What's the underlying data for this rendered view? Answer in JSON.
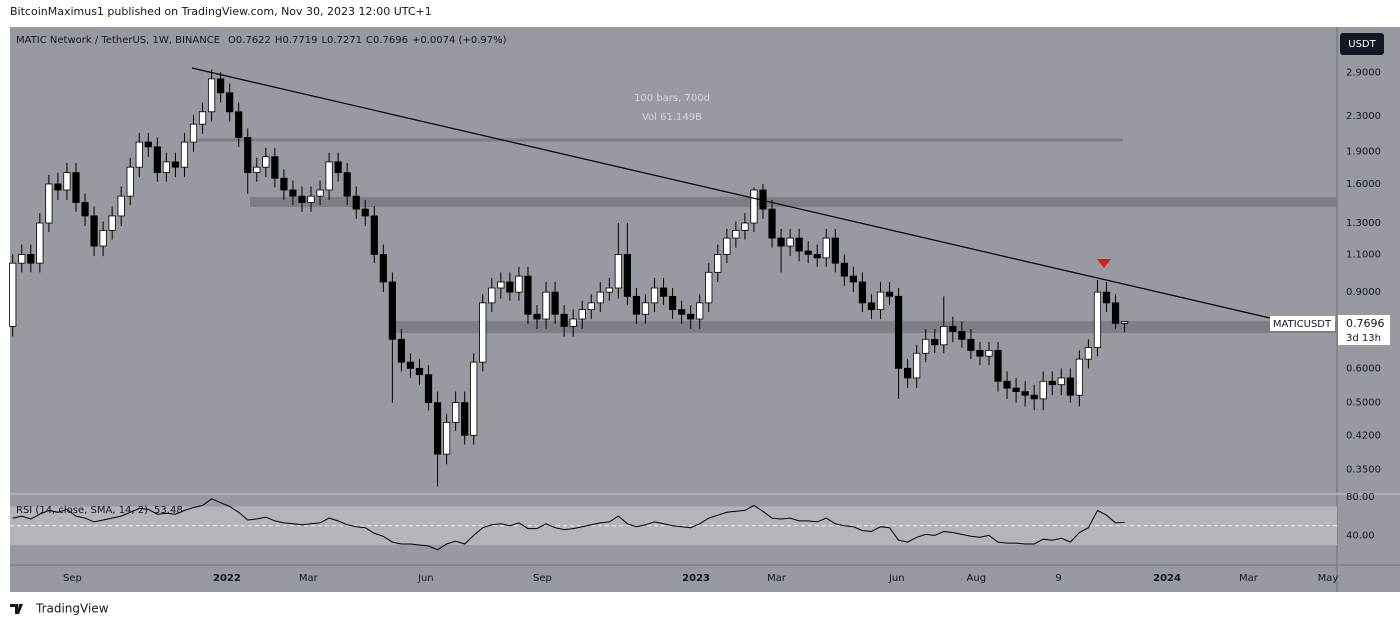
{
  "publisher": "BitcoinMaximus1 published on TradingView.com, Nov 30, 2023 12:00 UTC+1",
  "footer": "TradingView",
  "chart_data": {
    "type": "candlestick",
    "title": "MATIC Network / TetherUS, 1W, BINANCE",
    "ohlc_labels": [
      "O",
      "H",
      "L",
      "C"
    ],
    "change": "+0.0074 (+0.97%)",
    "currency_button": "USDT",
    "symbol": "MATICUSDT",
    "countdown": "3d 13h",
    "measure_texts": [
      "100 bars, 700d",
      "Vol 61.149B"
    ],
    "log_scale": true,
    "up_color": "#ffffff",
    "down_color": "#000000",
    "open": [
      0.75,
      1.05,
      1.1,
      1.05,
      1.3,
      1.6,
      1.55,
      1.7,
      1.45,
      1.35,
      1.15,
      1.25,
      1.35,
      1.5,
      1.75,
      2.0,
      1.95,
      1.7,
      1.8,
      1.75,
      2.0,
      2.2,
      2.35,
      2.8,
      2.6,
      2.35,
      2.05,
      1.7,
      1.75,
      1.85,
      1.65,
      1.55,
      1.5,
      1.45,
      1.5,
      1.55,
      1.8,
      1.7,
      1.5,
      1.4,
      1.35,
      1.1,
      0.95,
      0.7,
      0.62,
      0.6,
      0.58,
      0.5,
      0.38,
      0.45,
      0.5,
      0.42,
      0.62,
      0.85,
      0.92,
      0.95,
      0.9,
      0.98,
      0.8,
      0.78,
      0.9,
      0.8,
      0.75,
      0.78,
      0.82,
      0.85,
      0.9,
      0.92,
      1.1,
      0.88,
      0.8,
      0.85,
      0.92,
      0.88,
      0.82,
      0.8,
      0.78,
      0.85,
      1.0,
      1.1,
      1.2,
      1.25,
      1.3,
      1.55,
      1.4,
      1.2,
      1.15,
      1.2,
      1.12,
      1.1,
      1.08,
      1.2,
      1.05,
      0.98,
      0.95,
      0.85,
      0.82,
      0.9,
      0.88,
      0.6,
      0.57,
      0.65,
      0.7,
      0.68,
      0.75,
      0.73,
      0.7,
      0.66,
      0.64,
      0.66,
      0.56,
      0.54,
      0.53,
      0.52,
      0.51,
      0.56,
      0.55,
      0.57,
      0.52,
      0.63,
      0.67,
      0.9,
      0.85,
      0.7622
    ],
    "high": [
      1.1,
      1.16,
      1.16,
      1.37,
      1.68,
      1.7,
      1.79,
      1.79,
      1.52,
      1.42,
      1.31,
      1.42,
      1.58,
      1.84,
      2.1,
      2.1,
      2.05,
      1.89,
      1.89,
      2.1,
      2.31,
      2.47,
      2.94,
      2.9,
      2.73,
      2.47,
      2.15,
      1.84,
      1.94,
      1.94,
      1.73,
      1.63,
      1.58,
      1.58,
      1.63,
      1.89,
      1.89,
      1.79,
      1.58,
      1.47,
      1.42,
      1.16,
      1.0,
      0.74,
      0.65,
      0.63,
      0.61,
      0.53,
      0.47,
      0.53,
      0.53,
      0.65,
      0.89,
      0.97,
      1.0,
      1.0,
      1.03,
      1.03,
      0.84,
      0.95,
      0.95,
      0.84,
      0.82,
      0.86,
      0.89,
      0.95,
      0.97,
      1.3,
      1.3,
      0.92,
      0.89,
      0.97,
      0.97,
      0.92,
      0.86,
      0.84,
      0.89,
      1.05,
      1.16,
      1.26,
      1.31,
      1.37,
      1.57,
      1.6,
      1.47,
      1.26,
      1.26,
      1.26,
      1.18,
      1.16,
      1.26,
      1.26,
      1.1,
      1.03,
      1.0,
      0.89,
      0.95,
      0.95,
      0.92,
      0.63,
      0.68,
      0.74,
      0.74,
      0.88,
      0.79,
      0.77,
      0.74,
      0.69,
      0.69,
      0.69,
      0.59,
      0.57,
      0.56,
      0.55,
      0.59,
      0.59,
      0.6,
      0.6,
      0.66,
      0.7,
      0.96,
      0.95,
      0.89,
      0.7719
    ],
    "low": [
      0.71,
      1.0,
      1.0,
      1.0,
      1.24,
      1.47,
      1.47,
      1.38,
      1.28,
      1.09,
      1.09,
      1.19,
      1.28,
      1.43,
      1.66,
      1.85,
      1.62,
      1.62,
      1.66,
      1.66,
      1.9,
      2.09,
      2.23,
      2.47,
      2.23,
      1.95,
      1.52,
      1.62,
      1.66,
      1.57,
      1.47,
      1.43,
      1.38,
      1.38,
      1.43,
      1.47,
      1.62,
      1.43,
      1.33,
      1.28,
      1.05,
      0.9,
      0.5,
      0.59,
      0.57,
      0.55,
      0.48,
      0.32,
      0.36,
      0.43,
      0.4,
      0.4,
      0.59,
      0.81,
      0.87,
      0.86,
      0.86,
      0.76,
      0.74,
      0.74,
      0.76,
      0.71,
      0.71,
      0.74,
      0.78,
      0.81,
      0.86,
      0.87,
      0.84,
      0.76,
      0.76,
      0.81,
      0.84,
      0.78,
      0.76,
      0.74,
      0.74,
      0.81,
      0.95,
      1.05,
      1.14,
      1.19,
      1.24,
      1.33,
      1.14,
      1.0,
      1.09,
      1.06,
      1.05,
      1.03,
      1.03,
      1.0,
      0.93,
      0.9,
      0.81,
      0.78,
      0.78,
      0.84,
      0.51,
      0.54,
      0.54,
      0.62,
      0.65,
      0.65,
      0.69,
      0.67,
      0.63,
      0.61,
      0.61,
      0.53,
      0.51,
      0.5,
      0.49,
      0.48,
      0.48,
      0.52,
      0.52,
      0.5,
      0.49,
      0.6,
      0.64,
      0.81,
      0.74,
      0.7271
    ],
    "close": [
      1.05,
      1.1,
      1.05,
      1.3,
      1.6,
      1.55,
      1.7,
      1.45,
      1.35,
      1.15,
      1.25,
      1.35,
      1.5,
      1.75,
      2.0,
      1.95,
      1.7,
      1.8,
      1.75,
      2.0,
      2.2,
      2.35,
      2.8,
      2.6,
      2.35,
      2.05,
      1.7,
      1.75,
      1.85,
      1.65,
      1.55,
      1.5,
      1.45,
      1.5,
      1.55,
      1.8,
      1.7,
      1.5,
      1.4,
      1.35,
      1.1,
      0.95,
      0.7,
      0.62,
      0.6,
      0.58,
      0.5,
      0.38,
      0.45,
      0.5,
      0.42,
      0.62,
      0.85,
      0.92,
      0.95,
      0.9,
      0.98,
      0.8,
      0.78,
      0.9,
      0.8,
      0.75,
      0.78,
      0.82,
      0.85,
      0.9,
      0.92,
      1.1,
      0.88,
      0.8,
      0.85,
      0.92,
      0.88,
      0.82,
      0.8,
      0.78,
      0.85,
      1.0,
      1.1,
      1.2,
      1.25,
      1.3,
      1.55,
      1.4,
      1.2,
      1.15,
      1.2,
      1.12,
      1.1,
      1.08,
      1.2,
      1.05,
      0.98,
      0.95,
      0.85,
      0.82,
      0.9,
      0.88,
      0.6,
      0.57,
      0.65,
      0.7,
      0.68,
      0.75,
      0.73,
      0.7,
      0.66,
      0.64,
      0.66,
      0.56,
      0.54,
      0.53,
      0.52,
      0.51,
      0.56,
      0.55,
      0.57,
      0.52,
      0.63,
      0.67,
      0.9,
      0.85,
      0.7622,
      0.7696
    ],
    "ylim": [
      0.309,
      3.69
    ],
    "yticks": [
      {
        "value": 2.9,
        "label": "2.9000"
      },
      {
        "value": 2.3,
        "label": "2.3000"
      },
      {
        "value": 1.9,
        "label": "1.9000"
      },
      {
        "value": 1.6,
        "label": "1.6000"
      },
      {
        "value": 1.3,
        "label": "1.3000"
      },
      {
        "value": 1.1,
        "label": "1.1000"
      },
      {
        "value": 0.9,
        "label": "0.9000"
      },
      {
        "value": 0.6,
        "label": "0.6000"
      },
      {
        "value": 0.5,
        "label": "0.5000"
      },
      {
        "value": 0.42,
        "label": "0.4200"
      },
      {
        "value": 0.35,
        "label": "0.3500"
      }
    ],
    "xlim": [
      -0.3,
      146.5
    ],
    "xticks": [
      {
        "value": 6.6,
        "label": "Sep"
      },
      {
        "value": 23.7,
        "label": "2022"
      },
      {
        "value": 32.7,
        "label": "Mar"
      },
      {
        "value": 45.7,
        "label": "Jun"
      },
      {
        "value": 58.6,
        "label": "Sep"
      },
      {
        "value": 75.6,
        "label": "2023"
      },
      {
        "value": 84.5,
        "label": "Mar"
      },
      {
        "value": 97.8,
        "label": "Jun"
      },
      {
        "value": 106.6,
        "label": "Aug"
      },
      {
        "value": 115.7,
        "label": "9"
      },
      {
        "value": 127.7,
        "label": "2024"
      },
      {
        "value": 136.7,
        "label": "Mar"
      },
      {
        "value": 145.5,
        "label": "May"
      }
    ],
    "rsi": {
      "title": "RSI (14, close, SMA, 14, 2)",
      "color": "#000000",
      "values": [
        58,
        60,
        57,
        62,
        66,
        64,
        67,
        60,
        58,
        54,
        56,
        58,
        60,
        64,
        68,
        67,
        62,
        63,
        62,
        66,
        69,
        71,
        78,
        74,
        70,
        64,
        56,
        57,
        59,
        55,
        53,
        52,
        51,
        52,
        53,
        58,
        55,
        51,
        49,
        48,
        42,
        39,
        33,
        31,
        31,
        30,
        29,
        25,
        31,
        34,
        31,
        40,
        48,
        51,
        52,
        50,
        53,
        47,
        47,
        52,
        48,
        46,
        47,
        49,
        51,
        53,
        54,
        60,
        52,
        49,
        51,
        54,
        52,
        50,
        49,
        48,
        52,
        58,
        61,
        64,
        65,
        66,
        71,
        65,
        58,
        57,
        58,
        55,
        55,
        54,
        58,
        52,
        50,
        49,
        45,
        44,
        49,
        48,
        35,
        33,
        38,
        41,
        40,
        44,
        43,
        41,
        39,
        38,
        40,
        33,
        32,
        32,
        31,
        31,
        36,
        35,
        37,
        33,
        43,
        48,
        66,
        61,
        53,
        53.48
      ],
      "ylim": [
        9.2,
        83
      ],
      "yticks": [
        {
          "value": 80,
          "label": "80.00"
        },
        {
          "value": 40,
          "label": "40.00"
        }
      ],
      "band": [
        30,
        70
      ],
      "midline": 50
    }
  }
}
